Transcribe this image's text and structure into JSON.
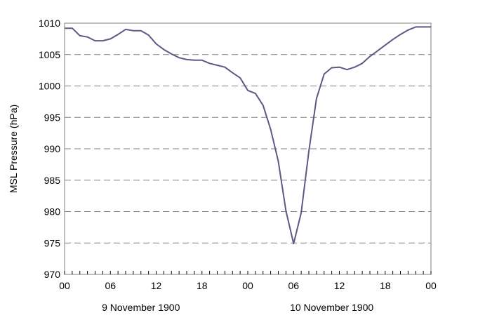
{
  "chart_data": {
    "type": "line",
    "title": "",
    "ylabel": "MSL Pressure (hPa)",
    "xlabel": "",
    "ylim": [
      970,
      1010
    ],
    "yticks": [
      "970",
      "975",
      "980",
      "985",
      "990",
      "995",
      "1000",
      "1005",
      "1010"
    ],
    "x_start_hour": 0,
    "x_end_hour": 48,
    "xticks": [
      {
        "hour": 0,
        "label": "00"
      },
      {
        "hour": 6,
        "label": "06"
      },
      {
        "hour": 12,
        "label": "12"
      },
      {
        "hour": 18,
        "label": "18"
      },
      {
        "hour": 24,
        "label": "00"
      },
      {
        "hour": 30,
        "label": "06"
      },
      {
        "hour": 36,
        "label": "12"
      },
      {
        "hour": 42,
        "label": "18"
      },
      {
        "hour": 48,
        "label": "00"
      }
    ],
    "date_labels": [
      {
        "center_hour": 10,
        "label": "9 November 1900"
      },
      {
        "center_hour": 35,
        "label": "10 November 1900"
      }
    ],
    "grid": "horizontal-dashed",
    "line_color": "#5a5a84",
    "series": [
      {
        "x": [
          0,
          1,
          2,
          3,
          4,
          5,
          6,
          7,
          8,
          9,
          10,
          11,
          12,
          13,
          14,
          15,
          16,
          17,
          18,
          19,
          20,
          21,
          22,
          23,
          24,
          25,
          26,
          27,
          28,
          29,
          30,
          31,
          32,
          33,
          34,
          35,
          36,
          37,
          38,
          39,
          40,
          41,
          42,
          43,
          44,
          45,
          46,
          47,
          48
        ],
        "values": [
          1009.2,
          1009.2,
          1008.0,
          1007.8,
          1007.2,
          1007.2,
          1007.5,
          1008.2,
          1009.0,
          1008.8,
          1008.8,
          1008.1,
          1006.7,
          1005.8,
          1005.1,
          1004.5,
          1004.2,
          1004.1,
          1004.1,
          1003.6,
          1003.3,
          1003.0,
          1002.1,
          1001.3,
          999.3,
          998.8,
          996.9,
          993.1,
          988.0,
          980.1,
          974.9,
          979.8,
          989.6,
          998.0,
          1001.9,
          1002.9,
          1003.0,
          1002.6,
          1003.0,
          1003.6,
          1004.7,
          1005.6,
          1006.5,
          1007.4,
          1008.2,
          1008.9,
          1009.4,
          1009.4,
          1009.4
        ]
      }
    ]
  }
}
